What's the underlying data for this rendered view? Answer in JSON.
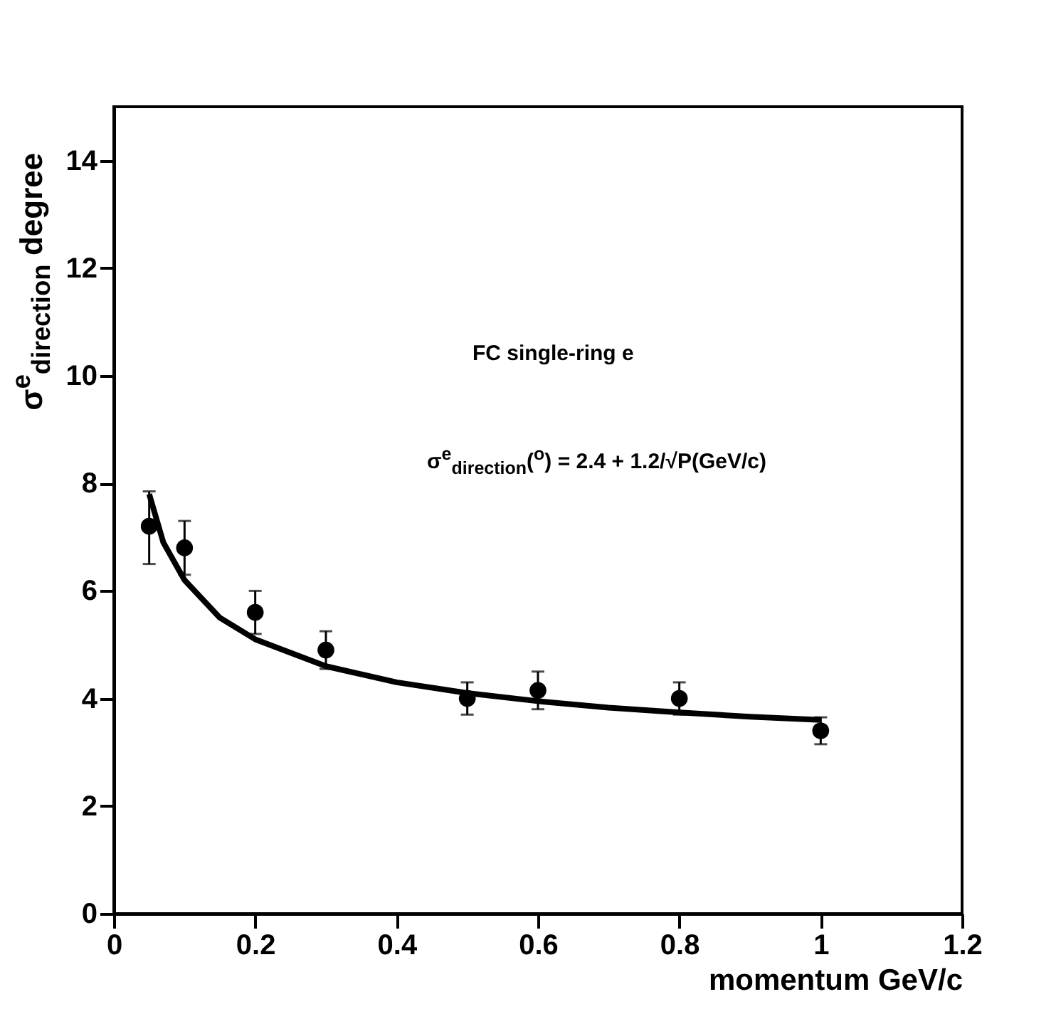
{
  "chart_data": {
    "type": "scatter",
    "xlabel": "momentum GeV/c",
    "ylabel": "σ$^{e}$$_{direction}$ degree",
    "annotations": [
      "FC single-ring e",
      "σ$^{e}$$_{direction}$($^{o}$) = 2.4 + 1.2/√P(GeV/c)"
    ],
    "xlim": [
      0,
      1.2
    ],
    "xticks": [
      0,
      0.2,
      0.4,
      0.6,
      0.8,
      1,
      1.2
    ],
    "ylim": [
      0,
      15
    ],
    "yticks": [
      0,
      2,
      4,
      6,
      8,
      10,
      12,
      14
    ],
    "series": [
      {
        "type": "scatter",
        "color": "#000000",
        "marker": "circle",
        "x": [
          0.05,
          0.1,
          0.2,
          0.3,
          0.5,
          0.6,
          0.8,
          1.0
        ],
        "values": [
          7.2,
          6.8,
          5.6,
          4.9,
          4.0,
          4.15,
          4.0,
          3.4
        ],
        "errors": [
          [
            6.5,
            7.85
          ],
          0.5,
          0.4,
          0.35,
          0.3,
          0.35,
          0.3,
          0.25
        ]
      },
      {
        "type": "line",
        "color": "#000000",
        "line_style": "solid",
        "x": [
          0.05,
          0.07,
          0.1,
          0.15,
          0.2,
          0.3,
          0.4,
          0.5,
          0.6,
          0.7,
          0.8,
          0.9,
          1.0
        ],
        "values": [
          7.8,
          6.9,
          6.2,
          5.5,
          5.1,
          4.6,
          4.3,
          4.1,
          3.95,
          3.83,
          3.74,
          3.66,
          3.6
        ]
      }
    ]
  }
}
